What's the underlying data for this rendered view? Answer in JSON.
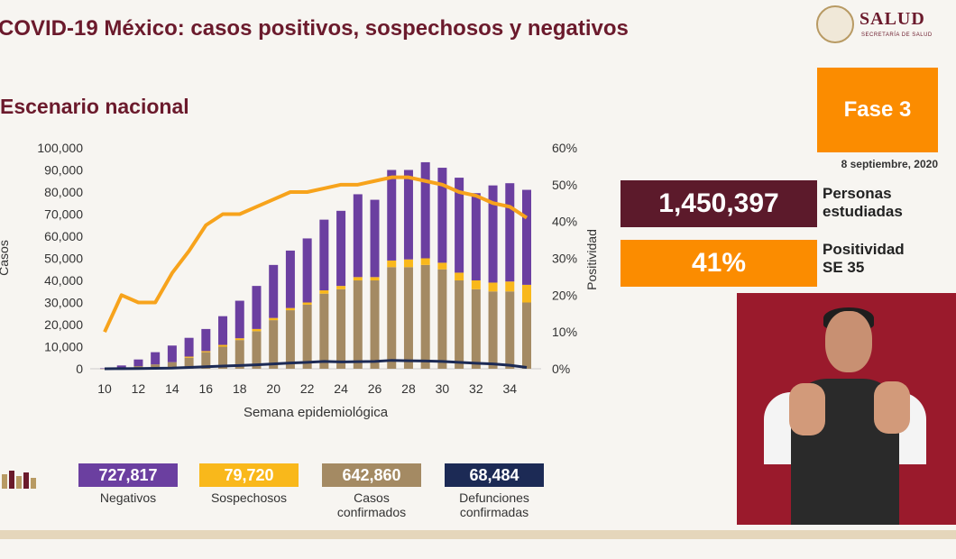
{
  "header": {
    "title": "COVID-19 México: casos positivos, sospechosos y negativos",
    "subtitle": "Escenario nacional"
  },
  "logo": {
    "text": "SALUD",
    "subtext": "SECRETARÍA DE SALUD"
  },
  "fase": {
    "label": "Fase 3",
    "date": "8 septiembre, 2020",
    "color": "#fb8c00"
  },
  "stats": [
    {
      "value": "1,450,397",
      "label_line1": "Personas",
      "label_line2": "estudiadas",
      "color": "#5c1a2b"
    },
    {
      "value": "41%",
      "label_line1": "Positividad",
      "label_line2": "SE 35",
      "color": "#fb8c00"
    }
  ],
  "legend": [
    {
      "value": "727,817",
      "label_line1": "Negativos",
      "label_line2": "",
      "color": "#6b3fa0"
    },
    {
      "value": "79,720",
      "label_line1": "Sospechosos",
      "label_line2": "",
      "color": "#f9b81b"
    },
    {
      "value": "642,860",
      "label_line1": "Casos",
      "label_line2": "confirmados",
      "color": "#a48a63"
    },
    {
      "value": "68,484",
      "label_line1": "Defunciones",
      "label_line2": "confirmadas",
      "color": "#1c2a55"
    }
  ],
  "chart_data": {
    "type": "bar",
    "xlabel": "Semana epidemiológica",
    "ylabel": "Casos",
    "y2label": "Positividad",
    "ylim": [
      0,
      100000
    ],
    "y2lim": [
      0,
      60
    ],
    "yticks": [
      "0",
      "10,000",
      "20,000",
      "30,000",
      "40,000",
      "50,000",
      "60,000",
      "70,000",
      "80,000",
      "90,000",
      "100,000"
    ],
    "y2ticks": [
      "0%",
      "10%",
      "20%",
      "30%",
      "40%",
      "50%",
      "60%"
    ],
    "xticks": [
      "10",
      "12",
      "14",
      "16",
      "18",
      "20",
      "22",
      "24",
      "26",
      "28",
      "30",
      "32",
      "34"
    ],
    "x": [
      10,
      11,
      12,
      13,
      14,
      15,
      16,
      17,
      18,
      19,
      20,
      21,
      22,
      23,
      24,
      25,
      26,
      27,
      28,
      29,
      30,
      31,
      32,
      33,
      34,
      35
    ],
    "stacked_series": [
      {
        "name": "Casos confirmados",
        "color": "#a48a63",
        "values": [
          50,
          500,
          1200,
          2000,
          3000,
          5000,
          7500,
          10000,
          13000,
          17000,
          22000,
          26500,
          29000,
          34000,
          36000,
          40000,
          40000,
          46000,
          46000,
          47000,
          45000,
          40000,
          36000,
          35000,
          35000,
          30000
        ]
      },
      {
        "name": "Sospechosos",
        "color": "#f9b81b",
        "values": [
          0,
          0,
          0,
          0,
          0,
          500,
          500,
          800,
          800,
          1000,
          1000,
          1000,
          1000,
          1500,
          1500,
          1500,
          1500,
          3000,
          3500,
          3000,
          3000,
          3500,
          4000,
          4000,
          4500,
          8000
        ]
      },
      {
        "name": "Negativos",
        "color": "#6b3fa0",
        "values": [
          150,
          1000,
          3000,
          5500,
          7500,
          8500,
          10000,
          13000,
          17000,
          19500,
          24000,
          26000,
          29000,
          32000,
          34000,
          37500,
          35000,
          41000,
          40500,
          43500,
          43000,
          43000,
          39500,
          44000,
          44500,
          43000
        ]
      }
    ],
    "lines": [
      {
        "name": "Positividad",
        "color": "#f7a31c",
        "axis": "right",
        "values": [
          10,
          20,
          18,
          18,
          26,
          32,
          39,
          42,
          42,
          44,
          46,
          48,
          48,
          49,
          50,
          50,
          51,
          52,
          52,
          51,
          50,
          48,
          47,
          45,
          44,
          41
        ]
      },
      {
        "name": "Defunciones confirmadas",
        "color": "#1c2a55",
        "axis": "left",
        "values": [
          0,
          50,
          100,
          200,
          300,
          600,
          900,
          1200,
          1500,
          1800,
          2200,
          2600,
          2900,
          3300,
          3100,
          3200,
          3300,
          3800,
          3600,
          3500,
          3300,
          2900,
          2500,
          2200,
          1600,
          600
        ]
      }
    ]
  }
}
